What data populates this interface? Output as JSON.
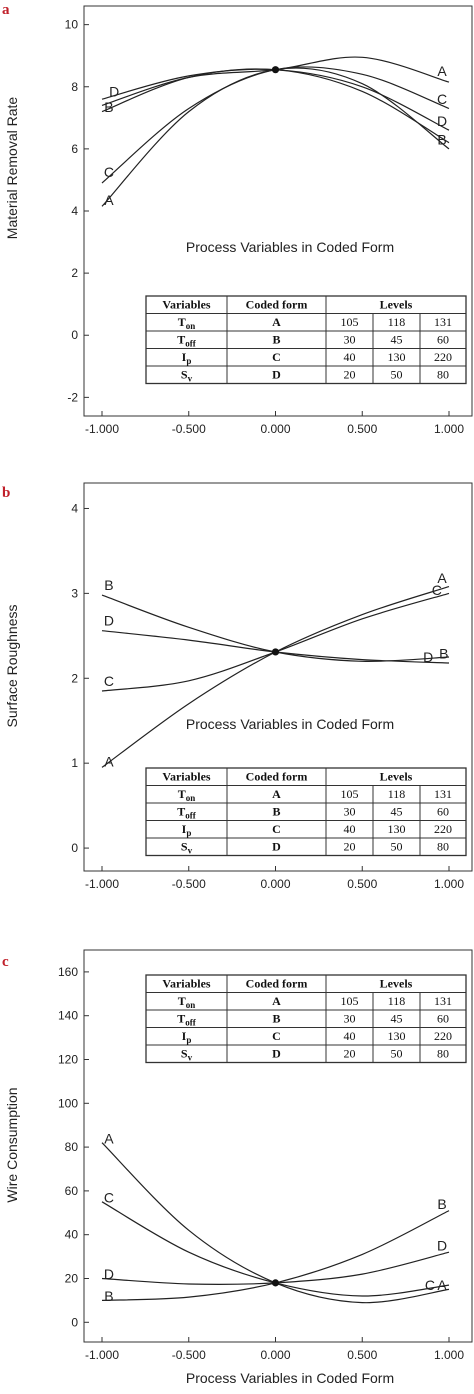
{
  "figure": {
    "panels": [
      "a",
      "b",
      "c"
    ],
    "xlabel": "Process Variables in Coded Form",
    "xticks": [
      "-1.000",
      "-0.500",
      "0.000",
      "0.500",
      "1.000"
    ]
  },
  "table": {
    "headers": [
      "Variables",
      "Coded form",
      "Levels"
    ],
    "rows": [
      {
        "var": "T",
        "sub": "on",
        "code": "A",
        "levels": [
          "105",
          "118",
          "131"
        ]
      },
      {
        "var": "T",
        "sub": "off",
        "code": "B",
        "levels": [
          "30",
          "45",
          "60"
        ]
      },
      {
        "var": "I",
        "sub": "p",
        "code": "C",
        "levels": [
          "40",
          "130",
          "220"
        ]
      },
      {
        "var": "S",
        "sub": "v",
        "code": "D",
        "levels": [
          "20",
          "50",
          "80"
        ]
      }
    ]
  },
  "chart_data": [
    {
      "type": "line",
      "panel": "a",
      "title": "",
      "xlabel": "Process Variables in Coded Form",
      "ylabel": "Material Removal Rate",
      "xlim": [
        -1,
        1
      ],
      "ylim": [
        -2.6,
        10.6
      ],
      "yticks": [
        "-2",
        "0",
        "2",
        "4",
        "6",
        "8",
        "10"
      ],
      "grid": false,
      "center_point": [
        0,
        8.55
      ],
      "series": [
        {
          "name": "A",
          "x": [
            -1,
            -0.5,
            0,
            0.5,
            1
          ],
          "y": [
            4.15,
            7.2,
            8.55,
            8.1,
            6.0
          ]
        },
        {
          "name": "B",
          "x": [
            -1,
            -0.5,
            0,
            0.5,
            1
          ],
          "y": [
            7.2,
            8.3,
            8.55,
            7.85,
            6.2
          ]
        },
        {
          "name": "C",
          "x": [
            -1,
            -0.5,
            0,
            0.5,
            1
          ],
          "y": [
            4.9,
            7.3,
            8.55,
            8.4,
            7.3
          ]
        },
        {
          "name": "D",
          "x": [
            -1,
            -0.5,
            0,
            0.5,
            1
          ],
          "y": [
            7.6,
            8.35,
            8.55,
            8.0,
            6.6
          ]
        },
        {
          "name": "A",
          "x": [
            -1,
            -0.5,
            0,
            0.5,
            1
          ],
          "y": [
            7.4,
            8.3,
            8.55,
            8.95,
            8.15
          ]
        }
      ],
      "labels": [
        {
          "text": "D",
          "x": -0.93,
          "y": 7.85
        },
        {
          "text": "B",
          "x": -0.96,
          "y": 7.35
        },
        {
          "text": "C",
          "x": -0.96,
          "y": 5.25
        },
        {
          "text": "A",
          "x": -0.96,
          "y": 4.35
        },
        {
          "text": "A",
          "x": 0.96,
          "y": 8.5
        },
        {
          "text": "C",
          "x": 0.96,
          "y": 7.6
        },
        {
          "text": "D",
          "x": 0.96,
          "y": 6.9
        },
        {
          "text": "B",
          "x": 0.96,
          "y": 6.3
        }
      ]
    },
    {
      "type": "line",
      "panel": "b",
      "title": "",
      "xlabel": "Process Variables in Coded Form",
      "ylabel": "Surface Roughness",
      "xlim": [
        -1,
        1
      ],
      "ylim": [
        -0.27,
        4.3
      ],
      "yticks": [
        "0",
        "1",
        "2",
        "3",
        "4"
      ],
      "grid": false,
      "center_point": [
        0,
        2.31
      ],
      "series": [
        {
          "name": "A",
          "x": [
            -1,
            -0.5,
            0,
            0.5,
            1
          ],
          "y": [
            0.95,
            1.7,
            2.31,
            2.75,
            3.08
          ]
        },
        {
          "name": "B",
          "x": [
            -1,
            -0.5,
            0,
            0.5,
            1
          ],
          "y": [
            2.98,
            2.6,
            2.31,
            2.2,
            2.25
          ]
        },
        {
          "name": "C",
          "x": [
            -1,
            -0.5,
            0,
            0.5,
            1
          ],
          "y": [
            1.85,
            1.97,
            2.31,
            2.7,
            3.0
          ]
        },
        {
          "name": "D",
          "x": [
            -1,
            -0.5,
            0,
            0.5,
            1
          ],
          "y": [
            2.56,
            2.45,
            2.31,
            2.22,
            2.18
          ]
        }
      ],
      "labels": [
        {
          "text": "B",
          "x": -0.96,
          "y": 3.1
        },
        {
          "text": "D",
          "x": -0.96,
          "y": 2.68
        },
        {
          "text": "C",
          "x": -0.96,
          "y": 1.97
        },
        {
          "text": "A",
          "x": -0.96,
          "y": 1.02
        },
        {
          "text": "A",
          "x": 0.96,
          "y": 3.18
        },
        {
          "text": "C",
          "x": 0.93,
          "y": 3.04
        },
        {
          "text": "D",
          "x": 0.88,
          "y": 2.25
        },
        {
          "text": "B",
          "x": 0.97,
          "y": 2.29
        }
      ]
    },
    {
      "type": "line",
      "panel": "c",
      "title": "",
      "xlabel": "Process Variables in Coded Form",
      "ylabel": "Wire Consumption",
      "xlim": [
        -1,
        1
      ],
      "ylim": [
        -9,
        170
      ],
      "yticks": [
        "0",
        "20",
        "40",
        "60",
        "80",
        "100",
        "120",
        "140",
        "160"
      ],
      "grid": false,
      "center_point": [
        0,
        18
      ],
      "series": [
        {
          "name": "A",
          "x": [
            -1,
            -0.5,
            0,
            0.5,
            1
          ],
          "y": [
            82,
            42,
            18,
            9,
            15
          ]
        },
        {
          "name": "B",
          "x": [
            -1,
            -0.5,
            0,
            0.5,
            1
          ],
          "y": [
            10,
            11.5,
            18,
            31,
            51
          ]
        },
        {
          "name": "C",
          "x": [
            -1,
            -0.5,
            0,
            0.5,
            1
          ],
          "y": [
            55,
            32,
            18,
            12,
            17
          ]
        },
        {
          "name": "D",
          "x": [
            -1,
            -0.5,
            0,
            0.5,
            1
          ],
          "y": [
            20,
            17.5,
            18,
            22,
            32
          ]
        }
      ],
      "labels": [
        {
          "text": "A",
          "x": -0.96,
          "y": 84
        },
        {
          "text": "C",
          "x": -0.96,
          "y": 57
        },
        {
          "text": "D",
          "x": -0.96,
          "y": 22
        },
        {
          "text": "B",
          "x": -0.96,
          "y": 12
        },
        {
          "text": "B",
          "x": 0.96,
          "y": 54
        },
        {
          "text": "D",
          "x": 0.96,
          "y": 35
        },
        {
          "text": "C",
          "x": 0.89,
          "y": 17
        },
        {
          "text": "A",
          "x": 0.96,
          "y": 17
        }
      ]
    }
  ]
}
